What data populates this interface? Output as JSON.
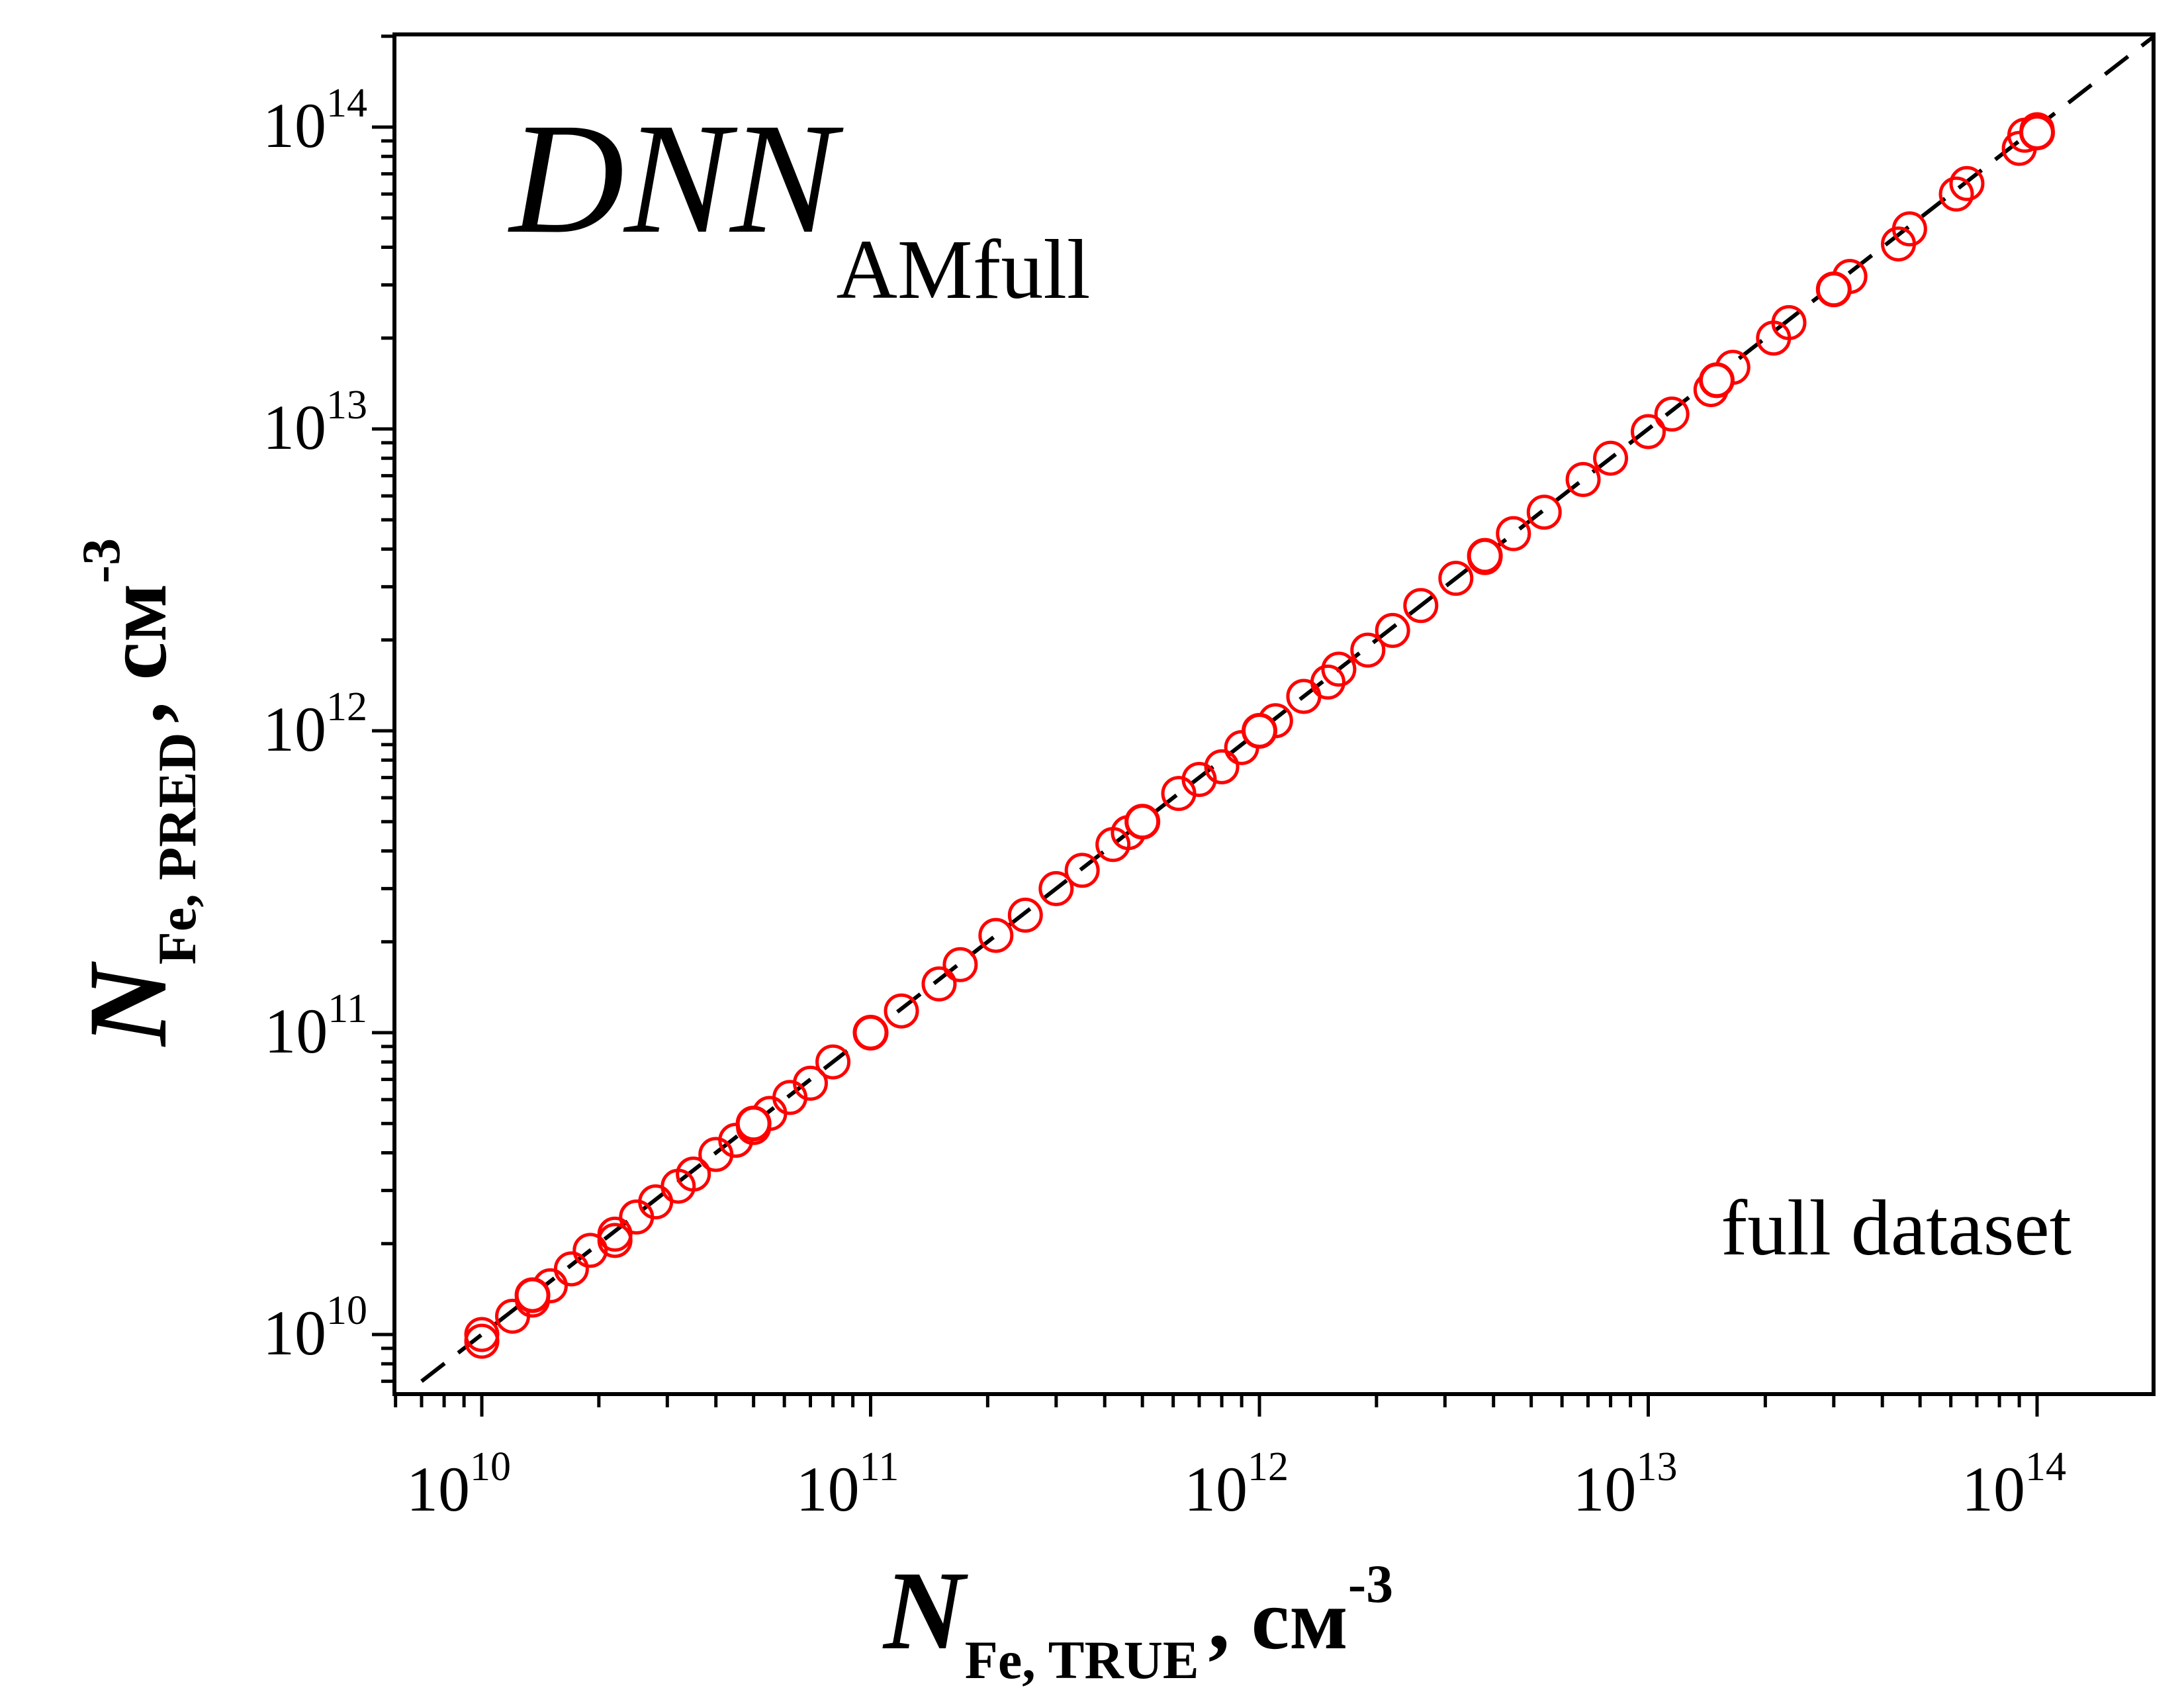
{
  "chart_data": {
    "type": "scatter",
    "title": "",
    "x_log": true,
    "y_log": true,
    "xlim": [
      7000000000.0,
      200000000000000.0
    ],
    "ylim": [
      6000000000.0,
      220000000000000.0
    ],
    "major_ticks": [
      {
        "base": "10",
        "exp": "10"
      },
      {
        "base": "10",
        "exp": "11"
      },
      {
        "base": "10",
        "exp": "12"
      },
      {
        "base": "10",
        "exp": "13"
      },
      {
        "base": "10",
        "exp": "14"
      }
    ],
    "xlabel": {
      "main": "N",
      "sub": "Fe, TRUE",
      "unit": ", см",
      "unit_exp": "-3"
    },
    "ylabel": {
      "main": "N",
      "sub": "Fe, PRED",
      "unit": ", см",
      "unit_exp": "-3"
    },
    "annotation_model": {
      "main": "DNN",
      "sub": "AMfull"
    },
    "annotation_dataset": "full dataset",
    "grid": false,
    "reference_line": {
      "style": "dashed",
      "color": "#000000",
      "from": 7000000000.0,
      "to": 200000000000000.0
    },
    "marker_colors": {
      "filled": "#ffffff",
      "edge": "#ff0000",
      "open_edge": "#ff0000"
    },
    "points": [
      [
        10000000000.0,
        10000000000.0
      ],
      [
        10000000000.0,
        9500000000.0
      ],
      [
        12000000000.0,
        11500000000.0
      ],
      [
        13500000000.0,
        13000000000.0
      ],
      [
        15000000000.0,
        14500000000.0
      ],
      [
        17000000000.0,
        16500000000.0
      ],
      [
        19000000000.0,
        19000000000.0
      ],
      [
        22000000000.0,
        21500000000.0
      ],
      [
        22000000000.0,
        20500000000.0
      ],
      [
        25000000000.0,
        24500000000.0
      ],
      [
        28000000000.0,
        27500000000.0
      ],
      [
        32000000000.0,
        31000000000.0
      ],
      [
        35000000000.0,
        34000000000.0
      ],
      [
        40000000000.0,
        39500000000.0
      ],
      [
        45000000000.0,
        44000000000.0
      ],
      [
        50000000000.0,
        48500000000.0
      ],
      [
        55000000000.0,
        54000000000.0
      ],
      [
        62000000000.0,
        61000000000.0
      ],
      [
        70000000000.0,
        68000000000.0
      ],
      [
        80000000000.0,
        80000000000.0
      ],
      [
        100000000000.0,
        100000000000.0
      ],
      [
        120000000000.0,
        118000000000.0
      ],
      [
        150000000000.0,
        145000000000.0
      ],
      [
        170000000000.0,
        168000000000.0
      ],
      [
        210000000000.0,
        210000000000.0
      ],
      [
        250000000000.0,
        245000000000.0
      ],
      [
        300000000000.0,
        300000000000.0
      ],
      [
        350000000000.0,
        345000000000.0
      ],
      [
        420000000000.0,
        420000000000.0
      ],
      [
        460000000000.0,
        460000000000.0
      ],
      [
        500000000000.0,
        500000000000.0
      ],
      [
        620000000000.0,
        620000000000.0
      ],
      [
        700000000000.0,
        690000000000.0
      ],
      [
        800000000000.0,
        760000000000.0
      ],
      [
        900000000000.0,
        880000000000.0
      ],
      [
        1000000000000.0,
        1000000000000.0
      ],
      [
        1100000000000.0,
        1080000000000.0
      ],
      [
        1300000000000.0,
        1300000000000.0
      ],
      [
        1500000000000.0,
        1450000000000.0
      ],
      [
        1600000000000.0,
        1600000000000.0
      ],
      [
        1900000000000.0,
        1850000000000.0
      ],
      [
        2200000000000.0,
        2150000000000.0
      ],
      [
        2600000000000.0,
        2600000000000.0
      ],
      [
        3200000000000.0,
        3200000000000.0
      ],
      [
        3800000000000.0,
        3750000000000.0
      ],
      [
        4500000000000.0,
        4500000000000.0
      ],
      [
        5400000000000.0,
        5300000000000.0
      ],
      [
        6800000000000.0,
        6800000000000.0
      ],
      [
        8000000000000.0,
        8000000000000.0
      ],
      [
        10000000000000.0,
        9800000000000.0
      ],
      [
        11500000000000.0,
        11200000000000.0
      ],
      [
        14500000000000.0,
        13500000000000.0
      ],
      [
        15000000000000.0,
        14500000000000.0
      ],
      [
        16500000000000.0,
        16000000000000.0
      ],
      [
        21000000000000.0,
        20000000000000.0
      ],
      [
        23000000000000.0,
        22500000000000.0
      ],
      [
        30000000000000.0,
        29000000000000.0
      ],
      [
        33000000000000.0,
        32000000000000.0
      ],
      [
        44000000000000.0,
        41000000000000.0
      ],
      [
        47000000000000.0,
        46000000000000.0
      ],
      [
        62000000000000.0,
        60000000000000.0
      ],
      [
        66000000000000.0,
        65000000000000.0
      ],
      [
        90000000000000.0,
        85000000000000.0
      ],
      [
        93000000000000.0,
        94000000000000.0
      ],
      [
        100000000000000.0,
        98000000000000.0
      ]
    ],
    "filled_points": [
      [
        13500000000.0,
        13500000000.0
      ],
      [
        50000000000.0,
        50000000000.0
      ],
      [
        100000000000.0,
        100000000000.0
      ],
      [
        500000000000.0,
        500000000000.0
      ],
      [
        1000000000000.0,
        1000000000000.0
      ],
      [
        3800000000000.0,
        3800000000000.0
      ],
      [
        15000000000000.0,
        14500000000000.0
      ],
      [
        30000000000000.0,
        29000000000000.0
      ],
      [
        100000000000000.0,
        96000000000000.0
      ]
    ]
  }
}
